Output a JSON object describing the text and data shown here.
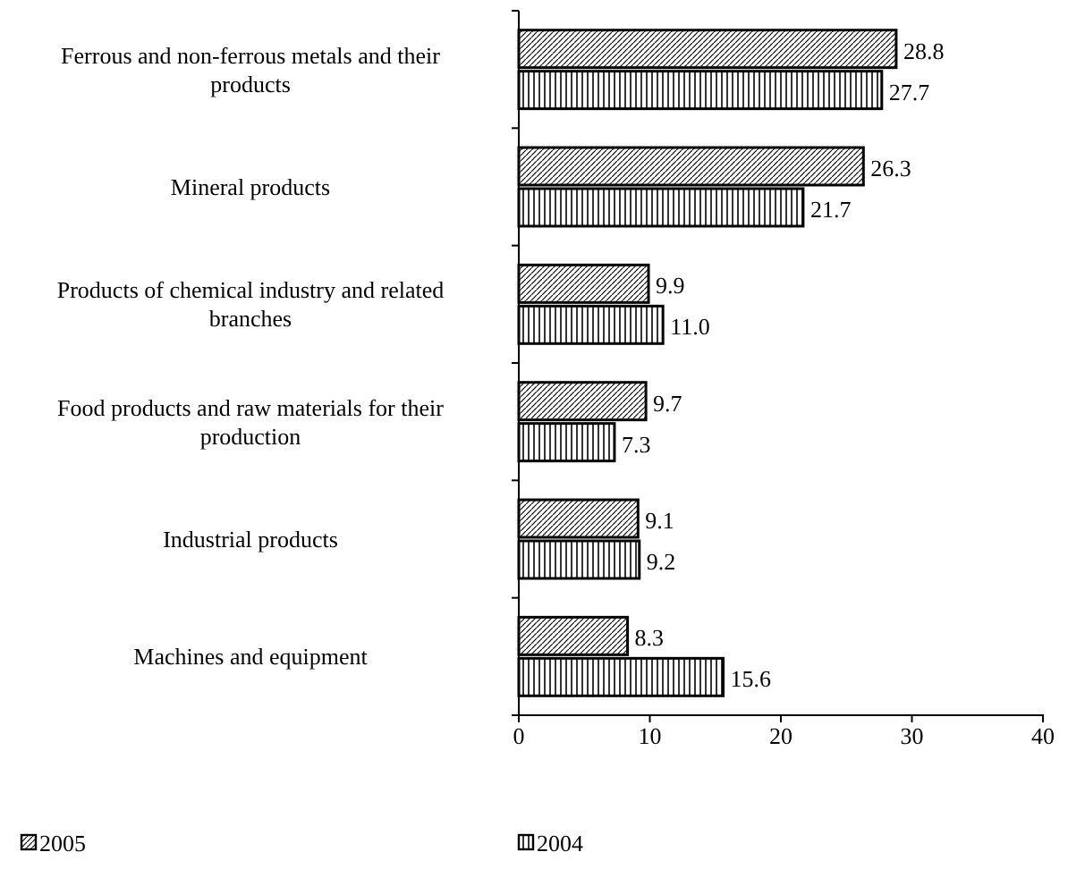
{
  "chart_data": {
    "type": "bar",
    "orientation": "horizontal",
    "categories": [
      "Ferrous and non-ferrous metals and their products",
      "Mineral products",
      "Products of chemical industry and related branches",
      "Food products and raw materials for their production",
      "Industrial products",
      "Machines and equipment"
    ],
    "series": [
      {
        "name": "2005",
        "color": "#000000",
        "values": [
          28.8,
          26.3,
          9.9,
          9.7,
          9.1,
          8.3
        ],
        "value_labels": [
          "28.8",
          "26.3",
          "9.9",
          "9.7",
          "9.1",
          "8.3"
        ]
      },
      {
        "name": "2004",
        "color": "#000000",
        "values": [
          27.7,
          21.7,
          11.0,
          7.3,
          9.2,
          15.6
        ],
        "value_labels": [
          "27.7",
          "21.7",
          "11.0",
          "7.3",
          "9.2",
          "15.6"
        ]
      }
    ],
    "xlim": [
      0,
      40
    ],
    "xticks": [
      0,
      10,
      20,
      30,
      40
    ],
    "legend": "bottom"
  }
}
